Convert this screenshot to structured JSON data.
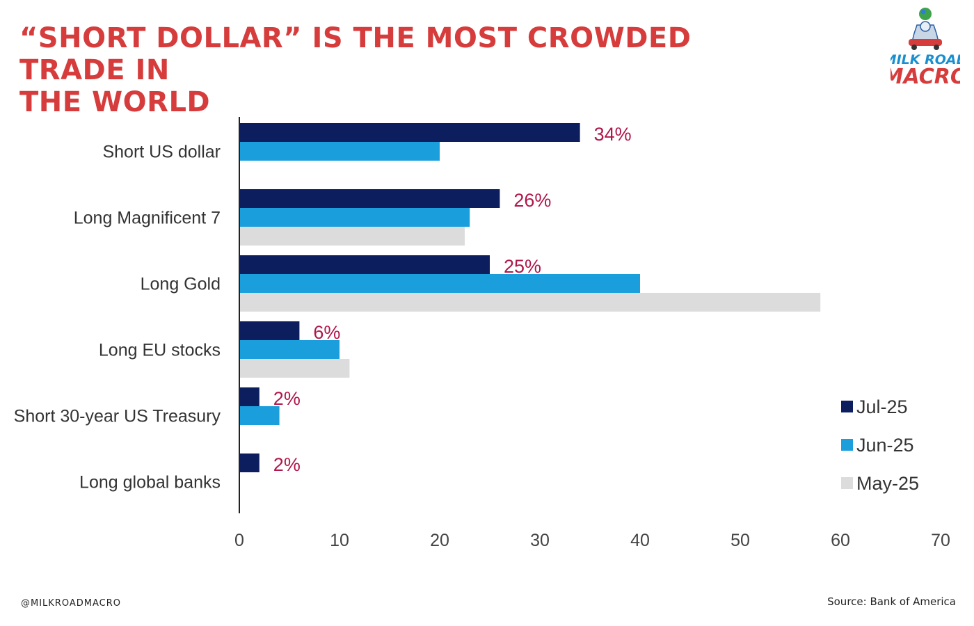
{
  "header": {
    "title_line1": "“SHORT DOLLAR” IS THE MOST CROWDED TRADE IN",
    "title_line2": "THE WORLD"
  },
  "logo": {
    "line1": "MILK ROAD",
    "line2": "MACRO"
  },
  "footer": {
    "handle": "@MILKROADMACRO",
    "source": "Source: Bank of America"
  },
  "colors": {
    "title": "#d63c3c",
    "jul": "#0c1e5e",
    "jun": "#1a9fdc",
    "may": "#dcdcdc",
    "data_label": "#b0174a"
  },
  "chart_data": {
    "type": "bar",
    "orientation": "horizontal",
    "categories": [
      "Short US dollar",
      "Long Magnificent 7",
      "Long Gold",
      "Long EU stocks",
      "Short 30-year US Treasury",
      "Long global banks"
    ],
    "series": [
      {
        "name": "Jul-25",
        "values": [
          34,
          26,
          25,
          6,
          2,
          2
        ]
      },
      {
        "name": "Jun-25",
        "values": [
          20,
          23,
          40,
          10,
          4,
          null
        ]
      },
      {
        "name": "May-25",
        "values": [
          null,
          22.5,
          58,
          11,
          null,
          null
        ]
      }
    ],
    "data_labels": [
      "34%",
      "26%",
      "25%",
      "6%",
      "2%",
      "2%"
    ],
    "xlim": [
      0,
      70
    ],
    "xticks": [
      "0",
      "10",
      "20",
      "30",
      "40",
      "50",
      "60",
      "70"
    ],
    "legend": "bottom-right",
    "grid": false
  }
}
